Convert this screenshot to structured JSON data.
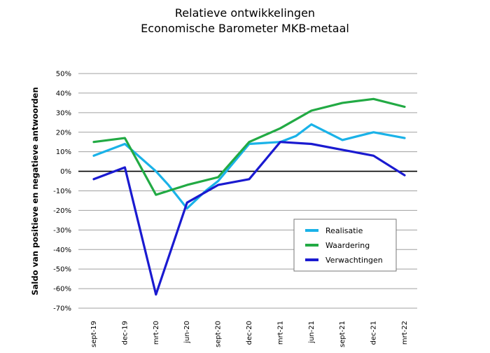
{
  "chart_data": {
    "type": "line",
    "title": "Relatieve ontwikkelingen",
    "subtitle": "Economische Barometer MKB-metaal",
    "xlabel": "",
    "ylabel": "Saldo van positieve en negatieve antwoorden",
    "categories": [
      "sept-19",
      "dec-19",
      "mrt-20",
      "jun-20",
      "sept-20",
      "dec-20",
      "mrt-21",
      "jun-21",
      "sept-21",
      "dec-21",
      "mrt-22"
    ],
    "ylim": [
      -70,
      50
    ],
    "yticks": [
      50,
      40,
      30,
      20,
      10,
      0,
      -10,
      -20,
      -30,
      -40,
      -50,
      -60,
      -70
    ],
    "ytick_suffix": "%",
    "grid": true,
    "legend_position": "bottom-right",
    "series": [
      {
        "name": "Realisatie",
        "color": "#1ab2e8",
        "x": [
          0,
          1,
          2,
          2.4,
          3,
          3.6,
          4,
          5,
          6,
          6.5,
          7,
          8,
          9,
          10
        ],
        "values": [
          8,
          14,
          0,
          -7,
          -19,
          -10,
          -5,
          14,
          15,
          18,
          24,
          16,
          20,
          17
        ]
      },
      {
        "name": "Waardering",
        "color": "#22aa44",
        "x": [
          0,
          1,
          2,
          3,
          4,
          5,
          6,
          7,
          8,
          9,
          10
        ],
        "values": [
          15,
          17,
          -12,
          -7,
          -3,
          15,
          22,
          31,
          35,
          37,
          33
        ]
      },
      {
        "name": "Verwachtingen",
        "color": "#1a1ad0",
        "x": [
          0,
          1,
          2,
          3,
          4,
          5,
          6,
          7,
          8,
          9,
          10
        ],
        "values": [
          -4,
          2,
          -63,
          -16,
          -7,
          -4,
          15,
          14,
          11,
          8,
          -2
        ]
      }
    ]
  }
}
